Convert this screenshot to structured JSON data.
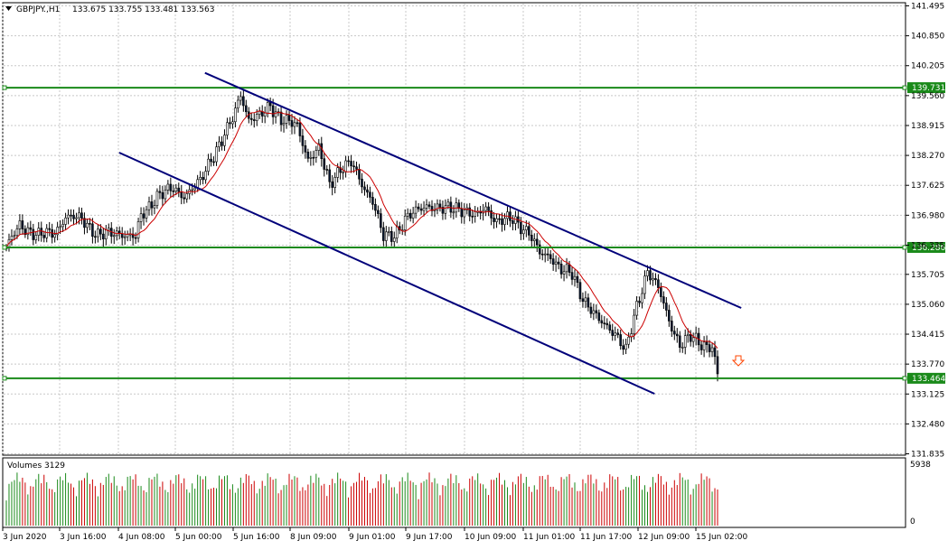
{
  "header": {
    "symbol": "GBPJPY.,H1",
    "ohlc": "133.675 133.755 133.481 133.563"
  },
  "volume_panel": {
    "label": "Volumes 3129",
    "max_label": "5938",
    "zero_label": "0"
  },
  "colors": {
    "bull": "#0a1a33",
    "ma": "#cc0000",
    "level": "#1a8a1a",
    "channel": "#00007a",
    "volume_up": "#1a8a1a",
    "volume_down": "#cc0000",
    "grid": "#c8c8c8",
    "arrow": "#ff4400"
  },
  "chart_data": {
    "type": "candlestick",
    "y_ticks": [
      "141.495",
      "140.850",
      "140.205",
      "139.560",
      "138.915",
      "138.270",
      "137.625",
      "136.980",
      "136.335",
      "135.705",
      "135.060",
      "134.415",
      "133.770",
      "133.125",
      "132.480",
      "131.835"
    ],
    "ylim": [
      131.835,
      141.495
    ],
    "x_ticks": [
      "3 Jun 2020",
      "3 Jun 16:00",
      "4 Jun 08:00",
      "5 Jun 00:00",
      "5 Jun 16:00",
      "8 Jun 09:00",
      "9 Jun 01:00",
      "9 Jun 17:00",
      "10 Jun 09:00",
      "11 Jun 01:00",
      "11 Jun 17:00",
      "12 Jun 09:00",
      "15 Jun 02:00"
    ],
    "levels": [
      {
        "label": "139.731",
        "value": 139.731
      },
      {
        "label": "136.286",
        "value": 136.286
      },
      {
        "label": "133.464",
        "value": 133.464
      }
    ],
    "channel": {
      "upper": {
        "from": [
          0.224,
          140.05
        ],
        "to": [
          0.818,
          134.98
        ]
      },
      "lower": {
        "from": [
          0.129,
          138.33
        ],
        "to": [
          0.722,
          133.13
        ]
      }
    },
    "anchors": [
      [
        0,
        136.3
      ],
      [
        5,
        136.75
      ],
      [
        12,
        136.55
      ],
      [
        18,
        136.6
      ],
      [
        22,
        136.95
      ],
      [
        28,
        136.9
      ],
      [
        34,
        136.55
      ],
      [
        42,
        136.6
      ],
      [
        48,
        136.5
      ],
      [
        50,
        136.95
      ],
      [
        56,
        137.4
      ],
      [
        62,
        137.55
      ],
      [
        66,
        137.4
      ],
      [
        72,
        137.7
      ],
      [
        76,
        138.2
      ],
      [
        80,
        138.6
      ],
      [
        84,
        139.05
      ],
      [
        87,
        139.6
      ],
      [
        90,
        139.05
      ],
      [
        94,
        139.1
      ],
      [
        98,
        139.35
      ],
      [
        102,
        139.05
      ],
      [
        108,
        138.9
      ],
      [
        112,
        138.2
      ],
      [
        116,
        138.4
      ],
      [
        120,
        137.65
      ],
      [
        124,
        138.0
      ],
      [
        128,
        138.1
      ],
      [
        132,
        137.65
      ],
      [
        136,
        137.3
      ],
      [
        140,
        136.5
      ],
      [
        144,
        136.55
      ],
      [
        148,
        136.9
      ],
      [
        152,
        137.05
      ],
      [
        156,
        137.2
      ],
      [
        162,
        137.1
      ],
      [
        168,
        137.15
      ],
      [
        174,
        136.95
      ],
      [
        178,
        137.15
      ],
      [
        182,
        136.85
      ],
      [
        188,
        136.9
      ],
      [
        194,
        136.6
      ],
      [
        198,
        136.15
      ],
      [
        202,
        136.1
      ],
      [
        206,
        135.8
      ],
      [
        210,
        135.7
      ],
      [
        214,
        135.2
      ],
      [
        220,
        134.7
      ],
      [
        226,
        134.45
      ],
      [
        230,
        134.05
      ],
      [
        234,
        135.0
      ],
      [
        238,
        135.8
      ],
      [
        242,
        135.4
      ],
      [
        246,
        134.7
      ],
      [
        250,
        134.2
      ],
      [
        254,
        134.35
      ],
      [
        258,
        134.2
      ],
      [
        262,
        134.15
      ],
      [
        264,
        133.56
      ]
    ],
    "candle_count": 265,
    "ma_period": 10
  }
}
